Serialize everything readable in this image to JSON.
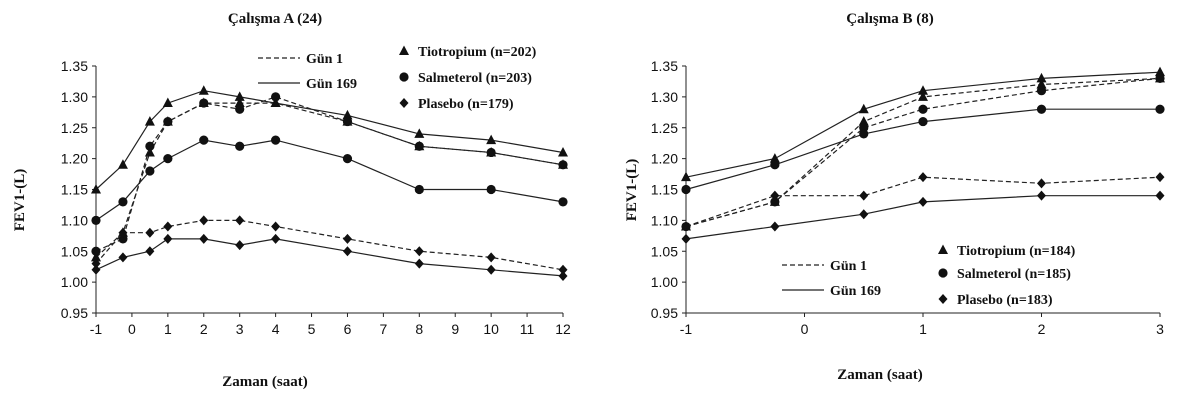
{
  "chart_data": [
    {
      "type": "line",
      "title": "Çalışma A (24)",
      "xlabel": "Zaman (saat)",
      "ylabel": "FEV1-(L)",
      "x": [
        -1,
        0,
        1,
        2,
        3,
        4,
        5,
        6,
        7,
        8,
        9,
        10,
        11,
        12
      ],
      "ylim": [
        0.95,
        1.35
      ],
      "yticks": [
        "0.95",
        "1.00",
        "1.05",
        "1.10",
        "1.15",
        "1.20",
        "1.25",
        "1.30",
        "1.35"
      ],
      "legend_lines": [
        {
          "label": "Gün 1",
          "style": "dashed"
        },
        {
          "label": "Gün 169",
          "style": "solid"
        }
      ],
      "legend_markers": [
        {
          "label": "Tiotropium (n=202)",
          "marker": "triangle"
        },
        {
          "label": "Salmeterol (n=203)",
          "marker": "circle"
        },
        {
          "label": "Plasebo (n=179)",
          "marker": "diamond"
        }
      ],
      "series": [
        {
          "drug": "Tiotropium",
          "day": "Gün 1",
          "style": "dashed",
          "marker": "triangle",
          "x": [
            -1,
            -0.25,
            0.5,
            1,
            2,
            3,
            4,
            6,
            8,
            10,
            12
          ],
          "y": [
            1.04,
            1.08,
            1.21,
            1.26,
            1.29,
            1.29,
            1.29,
            1.26,
            1.22,
            1.21,
            1.19
          ]
        },
        {
          "drug": "Tiotropium",
          "day": "Gün 169",
          "style": "solid",
          "marker": "triangle",
          "x": [
            -1,
            -0.25,
            0.5,
            1,
            2,
            3,
            4,
            6,
            8,
            10,
            12
          ],
          "y": [
            1.15,
            1.19,
            1.26,
            1.29,
            1.31,
            1.3,
            1.29,
            1.27,
            1.24,
            1.23,
            1.21
          ]
        },
        {
          "drug": "Salmeterol",
          "day": "Gün 1",
          "style": "dashed",
          "marker": "circle",
          "x": [
            -1,
            -0.25,
            0.5,
            1,
            2,
            3,
            4,
            6,
            8,
            10,
            12
          ],
          "y": [
            1.05,
            1.07,
            1.22,
            1.26,
            1.29,
            1.28,
            1.3,
            1.26,
            1.22,
            1.21,
            1.19
          ]
        },
        {
          "drug": "Salmeterol",
          "day": "Gün 169",
          "style": "solid",
          "marker": "circle",
          "x": [
            -1,
            -0.25,
            0.5,
            1,
            2,
            3,
            4,
            6,
            8,
            10,
            12
          ],
          "y": [
            1.1,
            1.13,
            1.18,
            1.2,
            1.23,
            1.22,
            1.23,
            1.2,
            1.15,
            1.15,
            1.13
          ]
        },
        {
          "drug": "Plasebo",
          "day": "Gün 1",
          "style": "dashed",
          "marker": "diamond",
          "x": [
            -1,
            -0.25,
            0.5,
            1,
            2,
            3,
            4,
            6,
            8,
            10,
            12
          ],
          "y": [
            1.03,
            1.08,
            1.08,
            1.09,
            1.1,
            1.1,
            1.09,
            1.07,
            1.05,
            1.04,
            1.02
          ]
        },
        {
          "drug": "Plasebo",
          "day": "Gün 169",
          "style": "solid",
          "marker": "diamond",
          "x": [
            -1,
            -0.25,
            0.5,
            1,
            2,
            3,
            4,
            6,
            8,
            10,
            12
          ],
          "y": [
            1.02,
            1.04,
            1.05,
            1.07,
            1.07,
            1.06,
            1.07,
            1.05,
            1.03,
            1.02,
            1.01
          ]
        }
      ]
    },
    {
      "type": "line",
      "title": "Çalışma B (8)",
      "xlabel": "Zaman (saat)",
      "ylabel": "FEV1-(L)",
      "x": [
        -1,
        0,
        1,
        2,
        3
      ],
      "ylim": [
        0.95,
        1.35
      ],
      "yticks": [
        "0.95",
        "1.00",
        "1.05",
        "1.10",
        "1.15",
        "1.20",
        "1.25",
        "1.30",
        "1.35"
      ],
      "legend_lines": [
        {
          "label": "Gün 1",
          "style": "dashed"
        },
        {
          "label": "Gün 169",
          "style": "solid"
        }
      ],
      "legend_markers": [
        {
          "label": "Tiotropium (n=184)",
          "marker": "triangle"
        },
        {
          "label": "Salmeterol (n=185)",
          "marker": "circle"
        },
        {
          "label": "Plasebo (n=183)",
          "marker": "diamond"
        }
      ],
      "series": [
        {
          "drug": "Tiotropium",
          "day": "Gün 1",
          "style": "dashed",
          "marker": "triangle",
          "x": [
            -1,
            -0.25,
            0.5,
            1,
            2,
            3
          ],
          "y": [
            1.09,
            1.13,
            1.26,
            1.3,
            1.32,
            1.33
          ]
        },
        {
          "drug": "Tiotropium",
          "day": "Gün 169",
          "style": "solid",
          "marker": "triangle",
          "x": [
            -1,
            -0.25,
            0.5,
            1,
            2,
            3
          ],
          "y": [
            1.17,
            1.2,
            1.28,
            1.31,
            1.33,
            1.34
          ]
        },
        {
          "drug": "Salmeterol",
          "day": "Gün 1",
          "style": "dashed",
          "marker": "circle",
          "x": [
            -1,
            -0.25,
            0.5,
            1,
            2,
            3
          ],
          "y": [
            1.09,
            1.13,
            1.25,
            1.28,
            1.31,
            1.33
          ]
        },
        {
          "drug": "Salmeterol",
          "day": "Gün 169",
          "style": "solid",
          "marker": "circle",
          "x": [
            -1,
            -0.25,
            0.5,
            1,
            2,
            3
          ],
          "y": [
            1.15,
            1.19,
            1.24,
            1.26,
            1.28,
            1.28
          ]
        },
        {
          "drug": "Plasebo",
          "day": "Gün 1",
          "style": "dashed",
          "marker": "diamond",
          "x": [
            -1,
            -0.25,
            0.5,
            1,
            2,
            3
          ],
          "y": [
            1.09,
            1.14,
            1.14,
            1.17,
            1.16,
            1.17
          ]
        },
        {
          "drug": "Plasebo",
          "day": "Gün 169",
          "style": "solid",
          "marker": "diamond",
          "x": [
            -1,
            -0.25,
            0.5,
            1,
            2,
            3
          ],
          "y": [
            1.07,
            1.09,
            1.11,
            1.13,
            1.14,
            1.14
          ]
        }
      ]
    }
  ]
}
